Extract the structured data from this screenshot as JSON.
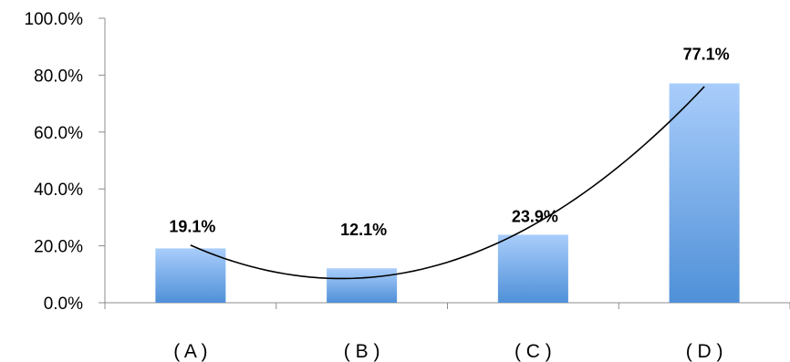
{
  "chart_data": {
    "type": "bar",
    "categories": [
      "( A )",
      "( B )",
      "( C )",
      "( D )"
    ],
    "values": [
      19.1,
      12.1,
      23.9,
      77.1
    ],
    "data_labels": [
      "19.1%",
      "12.1%",
      "23.9%",
      "77.1%"
    ],
    "ylim": [
      0,
      100
    ],
    "yticks": [
      0,
      20,
      40,
      60,
      80,
      100
    ],
    "ytick_labels": [
      "0.0%",
      "20.0%",
      "40.0%",
      "60.0%",
      "80.0%",
      "100.0%"
    ],
    "trendline": {
      "type": "polynomial",
      "order": 2,
      "color": "#000000"
    },
    "grid": false,
    "legend": "none",
    "title": "",
    "xlabel": "",
    "ylabel": "",
    "colors": {
      "bar_top": "#a9cdfb",
      "bar_bottom": "#4f90d8",
      "axis": "#8c8c8c"
    }
  }
}
